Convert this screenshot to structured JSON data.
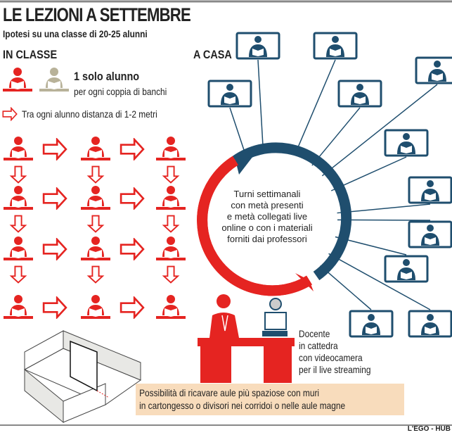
{
  "header": {
    "title": "LE LEZIONI A SETTEMBRE",
    "subtitle": "Ipotesi su una classe di 20-25 alunni"
  },
  "in_classe": {
    "label": "IN CLASSE",
    "rule1_title": "1 solo alunno",
    "rule1_text": "per ogni coppia di banchi",
    "rule2_text": "Tra ogni alunno distanza di 1-2 metri"
  },
  "a_casa": {
    "label": "A CASA",
    "cycle_text": [
      "Turni settimanali",
      "con metà presenti",
      "e metà collegati live",
      "online o con i materiali",
      "forniti dai professori"
    ]
  },
  "teacher": {
    "text": [
      "Docente",
      "in cattedra",
      "con videocamera",
      "per il live streaming"
    ]
  },
  "note": {
    "lines": [
      "Possibilità di ricavare aule più spaziose con muri",
      "in cartongesso o divisori nei corridoi o nelle aule magne"
    ]
  },
  "credit": "L'EGO - HUB",
  "colors": {
    "red": "#e52421",
    "blue": "#1f4e6e",
    "beige": "#b8b299",
    "note_bg": "#f8dcbc"
  }
}
